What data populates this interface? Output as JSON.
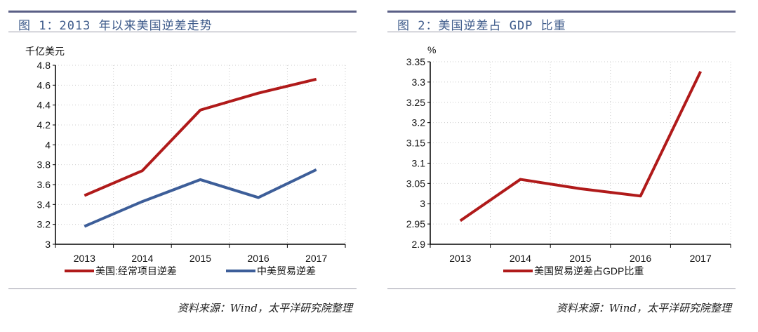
{
  "chart_data": [
    {
      "type": "line",
      "title": "图 1：2013 年以来美国逆差走势",
      "ylabel": "千亿美元",
      "categories": [
        "2013",
        "2014",
        "2015",
        "2016",
        "2017"
      ],
      "ylim": [
        3,
        4.8
      ],
      "yticks": [
        "3",
        "3.2",
        "3.4",
        "3.6",
        "3.8",
        "4",
        "4.2",
        "4.4",
        "4.6",
        "4.8"
      ],
      "grid": true,
      "legend": "bottom",
      "series": [
        {
          "name": "美国:经常项目逆差",
          "color": "#b01a1a",
          "values": [
            3.49,
            3.74,
            4.35,
            4.52,
            4.66
          ]
        },
        {
          "name": "中美贸易逆差",
          "color": "#3d5e99",
          "values": [
            3.18,
            3.43,
            3.65,
            3.47,
            3.75
          ]
        }
      ],
      "source": "资料来源：Wind，太平洋研究院整理"
    },
    {
      "type": "line",
      "title": "图 2：美国逆差占 GDP 比重",
      "ylabel": "%",
      "categories": [
        "2013",
        "2014",
        "2015",
        "2016",
        "2017"
      ],
      "ylim": [
        2.9,
        3.35
      ],
      "yticks": [
        "2.9",
        "2.95",
        "3",
        "3.05",
        "3.1",
        "3.15",
        "3.2",
        "3.25",
        "3.3",
        "3.35"
      ],
      "grid": true,
      "legend": "bottom",
      "series": [
        {
          "name": "美国贸易逆差占GDP比重",
          "color": "#b01a1a",
          "values": [
            2.958,
            3.06,
            3.037,
            3.019,
            3.326
          ]
        }
      ],
      "source": "资料来源：Wind，太平洋研究院整理"
    }
  ]
}
